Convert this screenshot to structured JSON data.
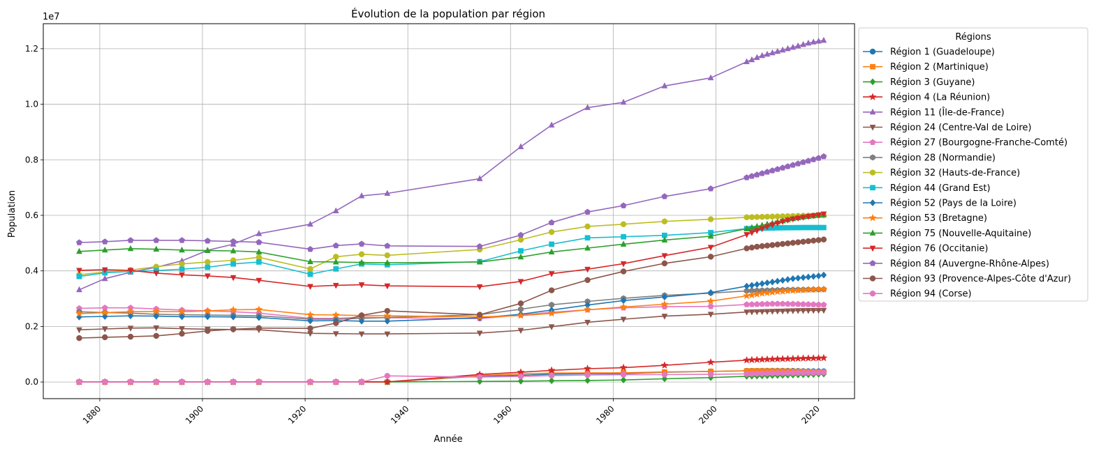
{
  "chart_data": {
    "type": "line",
    "title": "Évolution de la population par région",
    "xlabel": "Année",
    "ylabel": "Population",
    "y_multiplier_label": "1e7",
    "xlim": [
      1869,
      2027
    ],
    "ylim": [
      -600000,
      12900000
    ],
    "x_ticks": [
      "1880",
      "1900",
      "1920",
      "1940",
      "1960",
      "1980",
      "2000",
      "2020"
    ],
    "y_ticks": [
      "0.0",
      "0.2",
      "0.4",
      "0.6",
      "0.8",
      "1.0",
      "1.2"
    ],
    "grid": true,
    "legend_title": "Régions",
    "legend_position": "outside-right",
    "x": [
      1876,
      1881,
      1886,
      1891,
      1896,
      1901,
      1906,
      1911,
      1921,
      1926,
      1931,
      1936,
      1954,
      1962,
      1968,
      1975,
      1982,
      1990,
      1999,
      2006,
      2007,
      2008,
      2009,
      2010,
      2011,
      2012,
      2013,
      2014,
      2015,
      2016,
      2017,
      2018,
      2019,
      2020,
      2021
    ],
    "series": [
      {
        "name": "Région 1 (Guadeloupe)",
        "color": "#1f77b4",
        "marker": "o",
        "values": [
          0,
          0,
          0,
          0,
          0,
          0,
          0,
          0,
          0,
          0,
          0,
          0,
          210000,
          240000,
          280000,
          300000,
          300000,
          350000,
          380000,
          400000,
          400000,
          401000,
          402000,
          403000,
          404000,
          404000,
          403000,
          402000,
          400000,
          395000,
          390000,
          388000,
          386000,
          384000,
          383000
        ]
      },
      {
        "name": "Région 2 (Martinique)",
        "color": "#ff7f0e",
        "marker": "s",
        "values": [
          0,
          0,
          0,
          0,
          0,
          0,
          0,
          0,
          0,
          0,
          0,
          0,
          230000,
          290000,
          320000,
          325000,
          330000,
          360000,
          380000,
          400000,
          400000,
          400000,
          399000,
          398000,
          397000,
          395000,
          393000,
          390000,
          386000,
          380000,
          375000,
          370000,
          365000,
          362000,
          360000
        ]
      },
      {
        "name": "Région 3 (Guyane)",
        "color": "#2ca02c",
        "marker": "D",
        "values": [
          0,
          0,
          0,
          0,
          0,
          0,
          0,
          0,
          0,
          0,
          0,
          0,
          20000,
          30000,
          45000,
          55000,
          73000,
          115000,
          157000,
          205000,
          210000,
          215000,
          220000,
          225000,
          230000,
          235000,
          240000,
          245000,
          250000,
          255000,
          260000,
          265000,
          270000,
          280000,
          285000
        ]
      },
      {
        "name": "Région 4 (La Réunion)",
        "color": "#d62728",
        "marker": "*",
        "values": [
          0,
          0,
          0,
          0,
          0,
          0,
          0,
          0,
          0,
          0,
          0,
          0,
          270000,
          350000,
          420000,
          480000,
          515000,
          600000,
          710000,
          785000,
          795000,
          800000,
          810000,
          815000,
          820000,
          825000,
          830000,
          835000,
          840000,
          845000,
          850000,
          853000,
          856000,
          860000,
          865000
        ]
      },
      {
        "name": "Région 11 (Île-de-France)",
        "color": "#9467bd",
        "marker": "^",
        "values": [
          3320000,
          3720000,
          3950000,
          4130000,
          4360000,
          4740000,
          4960000,
          5340000,
          5680000,
          6160000,
          6700000,
          6790000,
          7320000,
          8470000,
          9250000,
          9880000,
          10070000,
          10660000,
          10950000,
          11530000,
          11600000,
          11680000,
          11750000,
          11800000,
          11850000,
          11900000,
          11950000,
          12000000,
          12050000,
          12100000,
          12150000,
          12200000,
          12240000,
          12270000,
          12300000
        ]
      },
      {
        "name": "Région 24 (Centre-Val de Loire)",
        "color": "#8c564b",
        "marker": "v",
        "values": [
          1880000,
          1910000,
          1940000,
          1950000,
          1920000,
          1900000,
          1890000,
          1880000,
          1750000,
          1740000,
          1730000,
          1730000,
          1760000,
          1860000,
          1990000,
          2150000,
          2260000,
          2370000,
          2440000,
          2520000,
          2525000,
          2530000,
          2535000,
          2540000,
          2545000,
          2550000,
          2555000,
          2560000,
          2565000,
          2570000,
          2572000,
          2574000,
          2576000,
          2578000,
          2580000
        ]
      },
      {
        "name": "Région 27 (Bourgogne-Franche-Comté)",
        "color": "#e377c2",
        "marker": "p",
        "values": [
          2650000,
          2670000,
          2670000,
          2630000,
          2590000,
          2560000,
          2530000,
          2480000,
          2290000,
          2290000,
          2330000,
          2310000,
          2280000,
          2410000,
          2510000,
          2600000,
          2670000,
          2710000,
          2720000,
          2790000,
          2795000,
          2800000,
          2805000,
          2810000,
          2815000,
          2815000,
          2815000,
          2812000,
          2810000,
          2805000,
          2800000,
          2795000,
          2790000,
          2785000,
          2780000
        ]
      },
      {
        "name": "Région 28 (Normandie)",
        "color": "#7f7f7f",
        "marker": "h",
        "values": [
          2530000,
          2500000,
          2480000,
          2440000,
          2420000,
          2410000,
          2400000,
          2380000,
          2260000,
          2260000,
          2290000,
          2320000,
          2420000,
          2620000,
          2780000,
          2900000,
          3010000,
          3120000,
          3200000,
          3280000,
          3285000,
          3290000,
          3295000,
          3300000,
          3305000,
          3310000,
          3315000,
          3320000,
          3322000,
          3324000,
          3326000,
          3328000,
          3330000,
          3332000,
          3335000
        ]
      },
      {
        "name": "Région 32 (Hauts-de-France)",
        "color": "#bcbd22",
        "marker": "o",
        "values": [
          3860000,
          3960000,
          4030000,
          4150000,
          4250000,
          4320000,
          4380000,
          4490000,
          4070000,
          4510000,
          4600000,
          4560000,
          4770000,
          5120000,
          5400000,
          5600000,
          5680000,
          5780000,
          5860000,
          5930000,
          5935000,
          5940000,
          5945000,
          5950000,
          5955000,
          5960000,
          5965000,
          5970000,
          5975000,
          5980000,
          5985000,
          5990000,
          5995000,
          5998000,
          6000000
        ]
      },
      {
        "name": "Région 44 (Grand Est)",
        "color": "#17becf",
        "marker": "s",
        "values": [
          3800000,
          3930000,
          3980000,
          4010000,
          4060000,
          4130000,
          4250000,
          4320000,
          3880000,
          4070000,
          4250000,
          4220000,
          4330000,
          4720000,
          4960000,
          5190000,
          5230000,
          5280000,
          5380000,
          5520000,
          5525000,
          5530000,
          5535000,
          5540000,
          5545000,
          5550000,
          5552000,
          5554000,
          5556000,
          5558000,
          5560000,
          5560000,
          5560000,
          5560000,
          5560000
        ]
      },
      {
        "name": "Région 52 (Pays de la Loire)",
        "color": "#1f77b4",
        "marker": "D",
        "values": [
          2340000,
          2360000,
          2380000,
          2370000,
          2350000,
          2350000,
          2340000,
          2320000,
          2200000,
          2210000,
          2190000,
          2190000,
          2310000,
          2440000,
          2590000,
          2770000,
          2930000,
          3060000,
          3220000,
          3450000,
          3480000,
          3510000,
          3540000,
          3570000,
          3600000,
          3630000,
          3660000,
          3690000,
          3720000,
          3740000,
          3760000,
          3780000,
          3800000,
          3820000,
          3850000
        ]
      },
      {
        "name": "Région 53 (Bretagne)",
        "color": "#ff7f0e",
        "marker": "*",
        "values": [
          2460000,
          2500000,
          2530000,
          2540000,
          2530000,
          2560000,
          2600000,
          2610000,
          2420000,
          2410000,
          2390000,
          2380000,
          2340000,
          2390000,
          2470000,
          2600000,
          2700000,
          2800000,
          2910000,
          3100000,
          3130000,
          3160000,
          3190000,
          3210000,
          3230000,
          3250000,
          3260000,
          3280000,
          3290000,
          3300000,
          3310000,
          3320000,
          3330000,
          3335000,
          3340000
        ]
      },
      {
        "name": "Région 75 (Nouvelle-Aquitaine)",
        "color": "#2ca02c",
        "marker": "^",
        "values": [
          4700000,
          4750000,
          4800000,
          4780000,
          4750000,
          4730000,
          4720000,
          4680000,
          4330000,
          4320000,
          4300000,
          4290000,
          4320000,
          4500000,
          4680000,
          4820000,
          4960000,
          5110000,
          5250000,
          5520000,
          5560000,
          5600000,
          5640000,
          5680000,
          5720000,
          5760000,
          5800000,
          5840000,
          5880000,
          5910000,
          5940000,
          5960000,
          5980000,
          6000000,
          6020000
        ]
      },
      {
        "name": "Région 76 (Occitanie)",
        "color": "#d62728",
        "marker": "v",
        "values": [
          4020000,
          4040000,
          4020000,
          3920000,
          3860000,
          3820000,
          3760000,
          3660000,
          3440000,
          3480000,
          3500000,
          3460000,
          3430000,
          3620000,
          3900000,
          4060000,
          4260000,
          4550000,
          4850000,
          5310000,
          5380000,
          5450000,
          5520000,
          5590000,
          5660000,
          5720000,
          5780000,
          5830000,
          5870000,
          5900000,
          5930000,
          5960000,
          5990000,
          6020000,
          6050000
        ]
      },
      {
        "name": "Région 84 (Auvergne-Rhône-Alpes)",
        "color": "#9467bd",
        "marker": "p",
        "values": [
          5020000,
          5050000,
          5100000,
          5100000,
          5100000,
          5080000,
          5060000,
          5030000,
          4780000,
          4910000,
          4970000,
          4900000,
          4880000,
          5290000,
          5740000,
          6120000,
          6350000,
          6680000,
          6960000,
          7360000,
          7410000,
          7460000,
          7510000,
          7560000,
          7610000,
          7660000,
          7710000,
          7760000,
          7810000,
          7860000,
          7910000,
          7960000,
          8010000,
          8060000,
          8120000
        ]
      },
      {
        "name": "Région 93 (Provence-Alpes-Côte d'Azur)",
        "color": "#8c564b",
        "marker": "o",
        "values": [
          1580000,
          1610000,
          1630000,
          1660000,
          1740000,
          1840000,
          1900000,
          1940000,
          1930000,
          2120000,
          2400000,
          2560000,
          2420000,
          2830000,
          3300000,
          3670000,
          3980000,
          4270000,
          4510000,
          4810000,
          4840000,
          4870000,
          4890000,
          4910000,
          4930000,
          4950000,
          4970000,
          4990000,
          5010000,
          5030000,
          5050000,
          5070000,
          5090000,
          5110000,
          5130000
        ]
      },
      {
        "name": "Région 94 (Corse)",
        "color": "#e377c2",
        "marker": "o",
        "values": [
          0,
          0,
          0,
          0,
          0,
          0,
          0,
          0,
          0,
          0,
          0,
          220000,
          175000,
          200000,
          230000,
          250000,
          260000,
          265000,
          275000,
          290000,
          295000,
          300000,
          305000,
          310000,
          315000,
          318000,
          320000,
          322000,
          325000,
          328000,
          330000,
          333000,
          336000,
          340000,
          345000
        ]
      }
    ]
  }
}
